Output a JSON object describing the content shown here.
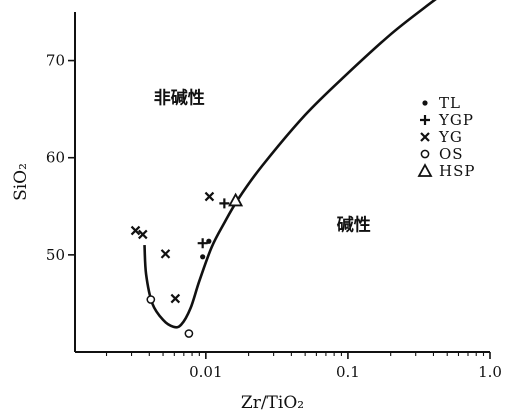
{
  "chart_data": {
    "type": "scatter",
    "xlabel": "Zr/TiO₂",
    "ylabel": "SiO₂",
    "x_scale": "log",
    "xlim": [
      0.0012,
      1.0
    ],
    "ylim": [
      40,
      75
    ],
    "x_ticks": [
      {
        "value": 0.01,
        "label": "0.01"
      },
      {
        "value": 0.1,
        "label": "0.1"
      },
      {
        "value": 1.0,
        "label": "1.0"
      }
    ],
    "y_ticks": [
      {
        "value": 50,
        "label": "50"
      },
      {
        "value": 60,
        "label": "60"
      },
      {
        "value": 70,
        "label": "70"
      }
    ],
    "region_labels": [
      {
        "text": "非碱性",
        "x": 0.0065,
        "y": 65.6
      },
      {
        "text": "碱性",
        "x": 0.11,
        "y": 52.5
      }
    ],
    "series": [
      {
        "name": "TL",
        "marker": "dot",
        "points": [
          [
            0.0095,
            49.8
          ],
          [
            0.0105,
            51.4
          ]
        ]
      },
      {
        "name": "YGP",
        "marker": "plus",
        "points": [
          [
            0.0095,
            51.2
          ],
          [
            0.0135,
            55.3
          ]
        ]
      },
      {
        "name": "YG",
        "marker": "x",
        "points": [
          [
            0.0032,
            52.5
          ],
          [
            0.0036,
            52.1
          ],
          [
            0.0052,
            50.1
          ],
          [
            0.0061,
            45.5
          ],
          [
            0.0106,
            56.0
          ]
        ]
      },
      {
        "name": "OS",
        "marker": "circle",
        "points": [
          [
            0.0041,
            45.4
          ],
          [
            0.0076,
            41.9
          ]
        ]
      },
      {
        "name": "HSP",
        "marker": "triangle",
        "points": [
          [
            0.0162,
            55.6
          ]
        ]
      }
    ],
    "boundary_curve": [
      [
        0.0037,
        51
      ],
      [
        0.0038,
        48
      ],
      [
        0.0042,
        45
      ],
      [
        0.005,
        43.3
      ],
      [
        0.0059,
        42.6
      ],
      [
        0.0067,
        42.8
      ],
      [
        0.0078,
        44.5
      ],
      [
        0.009,
        47.3
      ],
      [
        0.011,
        50.8
      ],
      [
        0.0135,
        53.3
      ],
      [
        0.017,
        55.8
      ],
      [
        0.025,
        59.2
      ],
      [
        0.05,
        64.4
      ],
      [
        0.1,
        68.7
      ],
      [
        0.2,
        72.7
      ],
      [
        0.35,
        75.5
      ],
      [
        0.5,
        77.2
      ]
    ]
  }
}
